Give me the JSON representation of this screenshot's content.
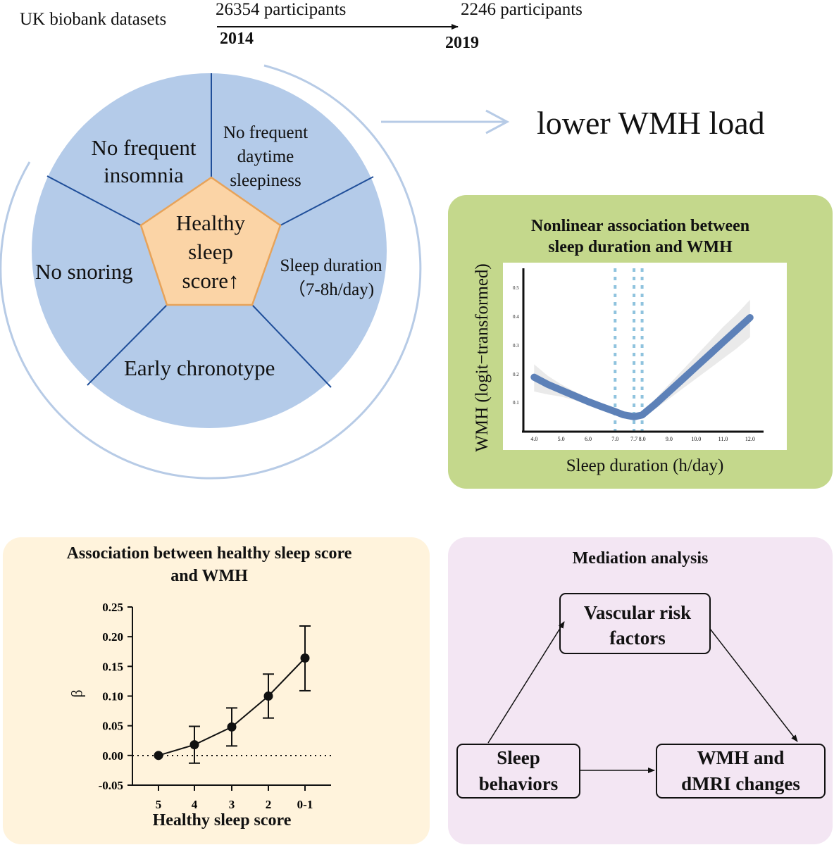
{
  "header": {
    "dataset": "UK biobank datasets",
    "start_participants": "26354 participants",
    "end_participants": "2246 participants",
    "start_year": "2014",
    "end_year": "2019"
  },
  "wheel": {
    "center": [
      "Healthy",
      "sleep",
      "score↑"
    ],
    "segments": {
      "insomnia": [
        "No frequent",
        "insomnia"
      ],
      "sleepiness": [
        "No frequent",
        "daytime",
        "sleepiness"
      ],
      "snoring": "No snoring",
      "duration": [
        "Sleep duration",
        "（7-8h/day)"
      ],
      "chronotype": "Early chronotype"
    }
  },
  "outcome": "lower WMH load",
  "colors": {
    "wheel_fill": "#b4cbe9",
    "pentagon_fill": "#fbd4a6",
    "pentagon_stroke": "#e7a35a",
    "arc": "#b7cbe6",
    "green_panel": "#c4d88c",
    "yellow_panel": "#fff3dc",
    "purple_panel": "#f3e6f3",
    "curve": "#5d81b8"
  },
  "nonlinear_panel": {
    "title": [
      "Nonlinear association between",
      "sleep duration and WMH"
    ],
    "ylabel": "WMH (logit−transformed)",
    "xlabel": "Sleep duration (h/day)"
  },
  "score_panel": {
    "title": [
      "Association between healthy sleep score",
      "and WMH"
    ]
  },
  "mediation_panel": {
    "title": "Mediation analysis",
    "vascular": [
      "Vascular risk",
      "factors"
    ],
    "sleep": [
      "Sleep",
      "behaviors"
    ],
    "wmh": [
      "WMH and",
      "dMRI changes"
    ]
  },
  "chart_data": [
    {
      "type": "line",
      "title": "Nonlinear association between sleep duration and WMH",
      "xlabel": "Sleep duration (h/day)",
      "ylabel": "WMH (logit−transformed)",
      "x_ticks": [
        "4.0",
        "5.0",
        "6.0",
        "7.0",
        "7.7",
        "8.0",
        "9.0",
        "10.0",
        "11.0",
        "12.0"
      ],
      "y_ticks": [
        "0.1",
        "0.2",
        "0.3",
        "0.4",
        "0.5"
      ],
      "xlim": [
        3.6,
        12.5
      ],
      "ylim": [
        0.0,
        0.57
      ],
      "vlines": [
        7.0,
        7.7,
        8.0
      ],
      "x": [
        4.0,
        4.5,
        5.0,
        5.5,
        6.0,
        6.5,
        7.0,
        7.3,
        7.7,
        8.0,
        8.5,
        9.0,
        9.5,
        10.0,
        10.5,
        11.0,
        11.5,
        12.0
      ],
      "y": [
        0.19,
        0.165,
        0.145,
        0.125,
        0.105,
        0.087,
        0.07,
        0.059,
        0.052,
        0.058,
        0.097,
        0.14,
        0.183,
        0.226,
        0.269,
        0.312,
        0.355,
        0.398
      ],
      "ci_upper": [
        0.235,
        0.195,
        0.165,
        0.14,
        0.118,
        0.098,
        0.08,
        0.068,
        0.062,
        0.07,
        0.115,
        0.165,
        0.215,
        0.265,
        0.315,
        0.365,
        0.41,
        0.46
      ],
      "ci_lower": [
        0.14,
        0.13,
        0.122,
        0.11,
        0.093,
        0.076,
        0.06,
        0.05,
        0.043,
        0.047,
        0.08,
        0.115,
        0.15,
        0.185,
        0.22,
        0.255,
        0.29,
        0.33
      ]
    },
    {
      "type": "line",
      "title": "Association between healthy sleep score and WMH",
      "xlabel": "Healthy sleep score",
      "ylabel": "β",
      "categories": [
        "5",
        "4",
        "3",
        "2",
        "0-1"
      ],
      "values": [
        0.0,
        0.018,
        0.048,
        0.1,
        0.164
      ],
      "error_low": [
        0.0,
        -0.013,
        0.016,
        0.063,
        0.109
      ],
      "error_high": [
        0.0,
        0.049,
        0.08,
        0.137,
        0.218
      ],
      "y_ticks": [
        "-0.05",
        "0.00",
        "0.05",
        "0.10",
        "0.15",
        "0.20",
        "0.25"
      ],
      "ylim": [
        -0.05,
        0.25
      ],
      "reference_line": 0.0
    }
  ]
}
